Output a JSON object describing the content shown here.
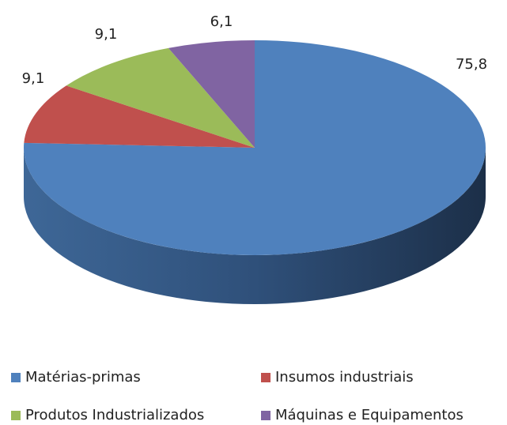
{
  "chart_data": {
    "type": "pie",
    "categories": [
      "Matérias-primas",
      "Insumos industriais",
      "Produtos Industrializados",
      "Máquinas e Equipamentos"
    ],
    "values": [
      75.8,
      9.1,
      9.1,
      6.1
    ],
    "value_labels": [
      "75,8",
      "9,1",
      "9,1",
      "6,1"
    ],
    "colors": [
      "#4f81bd",
      "#c0504d",
      "#9bbb59",
      "#8064a2"
    ],
    "legend": "bottom"
  }
}
